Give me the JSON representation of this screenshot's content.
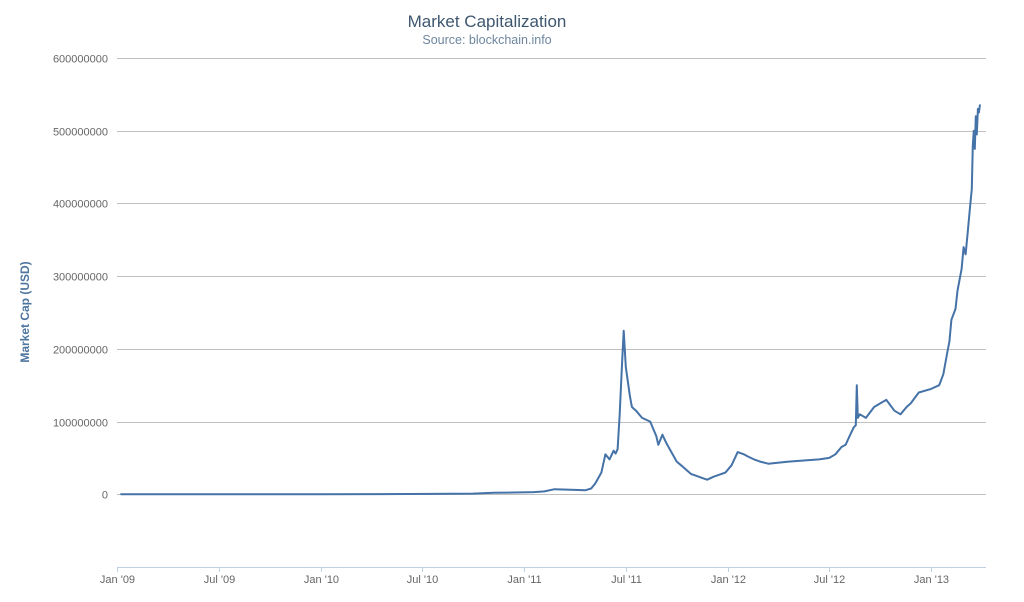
{
  "chart_data": {
    "type": "line",
    "title": "Market Capitalization",
    "subtitle": "Source: blockchain.info",
    "xlabel": "",
    "ylabel": "Market Cap (USD)",
    "ylim": [
      -100000000,
      600000000
    ],
    "xlim": [
      2009.0,
      2013.27
    ],
    "grid": true,
    "yticks": [
      {
        "value": 0,
        "label": "0"
      },
      {
        "value": 100000000,
        "label": "100000000"
      },
      {
        "value": 200000000,
        "label": "200000000"
      },
      {
        "value": 300000000,
        "label": "300000000"
      },
      {
        "value": 400000000,
        "label": "400000000"
      },
      {
        "value": 500000000,
        "label": "500000000"
      },
      {
        "value": 600000000,
        "label": "600000000"
      }
    ],
    "xticks": [
      {
        "value": 2009.0,
        "label": "Jan '09"
      },
      {
        "value": 2009.5,
        "label": "Jul '09"
      },
      {
        "value": 2010.0,
        "label": "Jan '10"
      },
      {
        "value": 2010.5,
        "label": "Jul '10"
      },
      {
        "value": 2011.0,
        "label": "Jan '11"
      },
      {
        "value": 2011.5,
        "label": "Jul '11"
      },
      {
        "value": 2012.0,
        "label": "Jan '12"
      },
      {
        "value": 2012.5,
        "label": "Jul '12"
      },
      {
        "value": 2013.0,
        "label": "Jan '13"
      }
    ],
    "series": [
      {
        "name": "Market Cap",
        "color": "#4572a7",
        "x": [
          2009.02,
          2009.5,
          2010.0,
          2010.3,
          2010.55,
          2010.75,
          2010.85,
          2010.95,
          2011.05,
          2011.1,
          2011.15,
          2011.25,
          2011.3,
          2011.33,
          2011.35,
          2011.38,
          2011.4,
          2011.42,
          2011.44,
          2011.45,
          2011.46,
          2011.47,
          2011.48,
          2011.49,
          2011.5,
          2011.52,
          2011.53,
          2011.55,
          2011.58,
          2011.62,
          2011.65,
          2011.66,
          2011.68,
          2011.7,
          2011.73,
          2011.75,
          2011.78,
          2011.82,
          2011.85,
          2011.88,
          2011.9,
          2011.93,
          2011.96,
          2011.99,
          2012.02,
          2012.05,
          2012.08,
          2012.1,
          2012.13,
          2012.16,
          2012.2,
          2012.3,
          2012.4,
          2012.45,
          2012.5,
          2012.53,
          2012.56,
          2012.58,
          2012.6,
          2012.62,
          2012.63,
          2012.635,
          2012.64,
          2012.65,
          2012.68,
          2012.72,
          2012.75,
          2012.78,
          2012.82,
          2012.85,
          2012.88,
          2012.9,
          2012.94,
          2013.0,
          2013.04,
          2013.06,
          2013.08,
          2013.09,
          2013.1,
          2013.12,
          2013.13,
          2013.15,
          2013.16,
          2013.17,
          2013.18,
          2013.19,
          2013.2,
          2013.205,
          2013.21,
          2013.215,
          2013.22,
          2013.225,
          2013.23,
          2013.235,
          2013.24
        ],
        "values": [
          0,
          0,
          0,
          200000,
          500000,
          1000000,
          2000000,
          2500000,
          3000000,
          4000000,
          7000000,
          6000000,
          5500000,
          8000000,
          15000000,
          30000000,
          55000000,
          48000000,
          60000000,
          56000000,
          62000000,
          110000000,
          170000000,
          225000000,
          175000000,
          135000000,
          120000000,
          115000000,
          105000000,
          100000000,
          80000000,
          68000000,
          82000000,
          70000000,
          55000000,
          45000000,
          38000000,
          28000000,
          25000000,
          22000000,
          20000000,
          24000000,
          27000000,
          30000000,
          40000000,
          58000000,
          55000000,
          52000000,
          48000000,
          45000000,
          42000000,
          45000000,
          47000000,
          48000000,
          50000000,
          55000000,
          65000000,
          68000000,
          80000000,
          92000000,
          95000000,
          150000000,
          105000000,
          110000000,
          105000000,
          120000000,
          125000000,
          130000000,
          115000000,
          110000000,
          120000000,
          125000000,
          140000000,
          145000000,
          150000000,
          165000000,
          195000000,
          210000000,
          240000000,
          255000000,
          280000000,
          310000000,
          340000000,
          330000000,
          360000000,
          390000000,
          420000000,
          480000000,
          500000000,
          475000000,
          520000000,
          495000000,
          530000000,
          525000000,
          535000000
        ]
      }
    ]
  }
}
